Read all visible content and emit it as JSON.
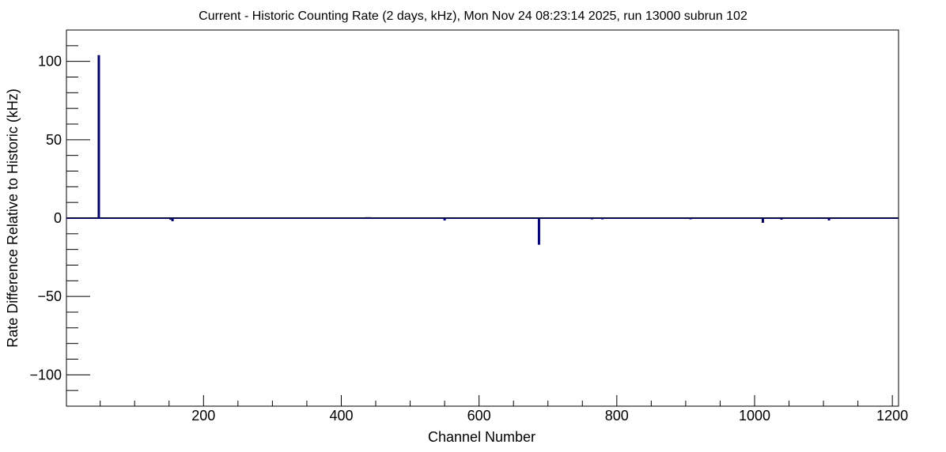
{
  "chart_data": {
    "type": "bar",
    "title": "Current - Historic Counting Rate (2 days, kHz), Mon Nov 24 08:23:14 2025, run 13000 subrun 102",
    "xlabel": "Channel Number",
    "ylabel": "Rate Difference Relative to Historic (kHz)",
    "xlim": [
      1,
      1209
    ],
    "ylim": [
      -120,
      120
    ],
    "xticks": [
      200,
      400,
      600,
      800,
      1000,
      1200
    ],
    "xtick_labels": [
      "200",
      "400",
      "600",
      "800",
      "1000",
      "1200"
    ],
    "yticks": [
      -100,
      -50,
      0,
      50,
      100
    ],
    "ytick_labels": [
      "−100",
      "−50",
      "0",
      "50",
      "100"
    ],
    "grid": false,
    "color": "#000080",
    "series": [
      {
        "points": [
          {
            "x": 48,
            "y": 104
          },
          {
            "x": 152,
            "y": -1
          },
          {
            "x": 155,
            "y": -2
          },
          {
            "x": 437,
            "y": 0.6
          },
          {
            "x": 441,
            "y": 0.6
          },
          {
            "x": 550,
            "y": -1.5
          },
          {
            "x": 687,
            "y": -17
          },
          {
            "x": 693,
            "y": 0.5
          },
          {
            "x": 764,
            "y": -0.8
          },
          {
            "x": 779,
            "y": -0.8
          },
          {
            "x": 815,
            "y": 0.5
          },
          {
            "x": 907,
            "y": -0.8
          },
          {
            "x": 1012,
            "y": -3
          },
          {
            "x": 1039,
            "y": -1
          },
          {
            "x": 1108,
            "y": -1.5
          }
        ]
      }
    ]
  }
}
